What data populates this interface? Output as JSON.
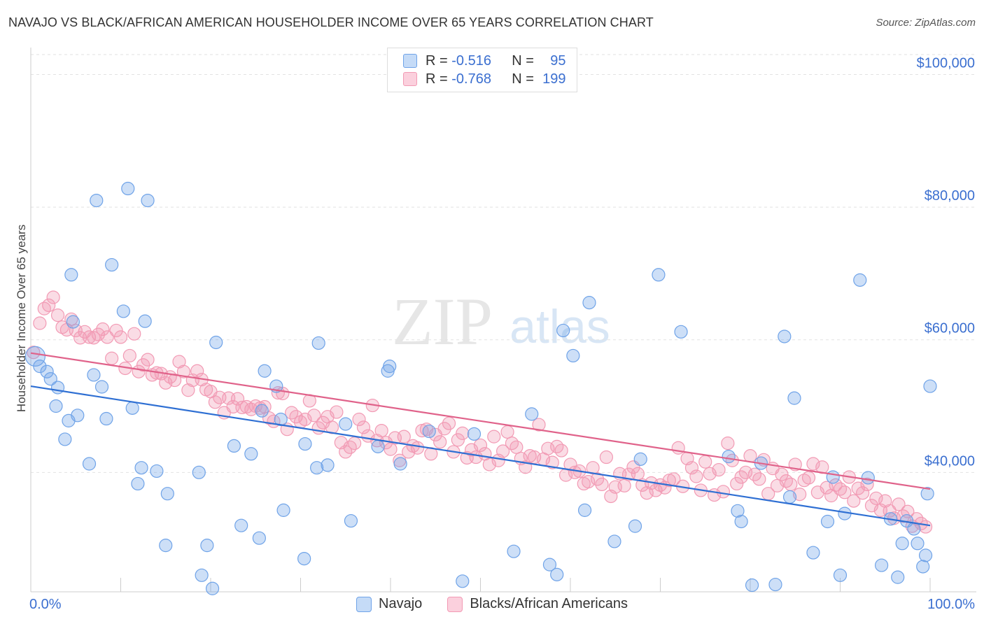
{
  "title": "NAVAJO VS BLACK/AFRICAN AMERICAN HOUSEHOLDER INCOME OVER 65 YEARS CORRELATION CHART",
  "source": "Source: ZipAtlas.com",
  "watermark": {
    "zip": "ZIP",
    "atlas": "atlas"
  },
  "legend": {
    "r_label": "R =",
    "n_label": "N =",
    "rows": [
      {
        "name": "Navajo",
        "r": "-0.516",
        "n": "95",
        "color": "#6fa3e8"
      },
      {
        "name": "Blacks/African Americans",
        "r": "-0.768",
        "n": "199",
        "color": "#f29ab4"
      }
    ]
  },
  "colors": {
    "blue": "#6fa3e8",
    "blue_line": "#2e6fd3",
    "pink": "#f29ab4",
    "pink_line": "#e0628a",
    "axis_text": "#3b6fd0"
  },
  "chart_data": {
    "type": "scatter",
    "title": "NAVAJO VS BLACK/AFRICAN AMERICAN HOUSEHOLDER INCOME OVER 65 YEARS CORRELATION CHART",
    "xlabel": "",
    "ylabel": "Householder Income Over 65 years",
    "xlim": [
      0,
      100
    ],
    "ylim": [
      22000,
      103000
    ],
    "x_tick_labels": [
      "0.0%",
      "100.0%"
    ],
    "y_ticks": [
      40000,
      60000,
      80000,
      100000
    ],
    "y_tick_labels": [
      "$40,000",
      "$60,000",
      "$80,000",
      "$100,000"
    ],
    "grid": true,
    "legend_position": "top-center",
    "series": [
      {
        "name": "Navajo",
        "r": -0.516,
        "n": 95,
        "trend": {
          "x": [
            0,
            100
          ],
          "y": [
            53000,
            32000
          ]
        },
        "points": [
          [
            0.5,
            57500
          ],
          [
            1.0,
            56000
          ],
          [
            1.8,
            55200
          ],
          [
            2.2,
            54100
          ],
          [
            3.0,
            52800
          ],
          [
            2.8,
            50000
          ],
          [
            3.8,
            45000
          ],
          [
            4.2,
            47800
          ],
          [
            5.2,
            48600
          ],
          [
            4.7,
            62700
          ],
          [
            4.5,
            69800
          ],
          [
            6.5,
            41300
          ],
          [
            7.0,
            54700
          ],
          [
            7.9,
            52900
          ],
          [
            7.3,
            81000
          ],
          [
            8.4,
            48100
          ],
          [
            9.0,
            71300
          ],
          [
            10.3,
            64300
          ],
          [
            10.8,
            82800
          ],
          [
            11.3,
            49700
          ],
          [
            11.9,
            38300
          ],
          [
            12.3,
            40700
          ],
          [
            12.7,
            62800
          ],
          [
            13.0,
            81000
          ],
          [
            14.0,
            40200
          ],
          [
            15.2,
            36800
          ],
          [
            15.0,
            29000
          ],
          [
            18.7,
            40000
          ],
          [
            19.0,
            24500
          ],
          [
            19.6,
            29000
          ],
          [
            20.6,
            59600
          ],
          [
            22.6,
            44000
          ],
          [
            23.4,
            32000
          ],
          [
            24.5,
            42800
          ],
          [
            25.7,
            49300
          ],
          [
            25.4,
            30100
          ],
          [
            26.0,
            55300
          ],
          [
            27.3,
            53000
          ],
          [
            27.8,
            48000
          ],
          [
            28.1,
            34300
          ],
          [
            30.5,
            44300
          ],
          [
            31.8,
            40700
          ],
          [
            32.0,
            59500
          ],
          [
            33.0,
            41100
          ],
          [
            35.0,
            47300
          ],
          [
            35.6,
            32700
          ],
          [
            38.6,
            43900
          ],
          [
            39.7,
            55300
          ],
          [
            39.9,
            56000
          ],
          [
            41.1,
            41300
          ],
          [
            44.3,
            46200
          ],
          [
            48.0,
            23600
          ],
          [
            49.3,
            45800
          ],
          [
            53.7,
            28100
          ],
          [
            55.7,
            48800
          ],
          [
            57.7,
            26100
          ],
          [
            58.5,
            24600
          ],
          [
            59.2,
            61400
          ],
          [
            60.3,
            57600
          ],
          [
            61.6,
            34300
          ],
          [
            62.1,
            65600
          ],
          [
            64.9,
            29600
          ],
          [
            67.2,
            31900
          ],
          [
            67.8,
            42000
          ],
          [
            69.8,
            69800
          ],
          [
            72.3,
            61200
          ],
          [
            77.6,
            42400
          ],
          [
            78.6,
            34200
          ],
          [
            80.2,
            23000
          ],
          [
            81.2,
            41400
          ],
          [
            82.8,
            23100
          ],
          [
            83.8,
            60500
          ],
          [
            84.4,
            36300
          ],
          [
            84.9,
            51200
          ],
          [
            87.0,
            27900
          ],
          [
            88.6,
            32600
          ],
          [
            89.2,
            39300
          ],
          [
            90.0,
            24500
          ],
          [
            90.5,
            33800
          ],
          [
            92.2,
            69000
          ],
          [
            93.1,
            39200
          ],
          [
            94.6,
            26000
          ],
          [
            95.6,
            33000
          ],
          [
            96.4,
            24200
          ],
          [
            96.9,
            29300
          ],
          [
            97.4,
            32700
          ],
          [
            98.2,
            31500
          ],
          [
            98.6,
            29300
          ],
          [
            99.2,
            25800
          ],
          [
            99.7,
            36800
          ],
          [
            100.0,
            53000
          ],
          [
            79.0,
            32600
          ],
          [
            99.5,
            27500
          ],
          [
            20.2,
            22500
          ],
          [
            30.4,
            27000
          ]
        ]
      },
      {
        "name": "Blacks/African Americans",
        "r": -0.768,
        "n": 199,
        "trend": {
          "x": [
            0,
            100
          ],
          "y": [
            58000,
            37500
          ]
        },
        "points": [
          [
            0.3,
            58100
          ],
          [
            1.0,
            62500
          ],
          [
            1.5,
            64700
          ],
          [
            2.0,
            65200
          ],
          [
            2.5,
            66400
          ],
          [
            3.0,
            63700
          ],
          [
            3.5,
            61900
          ],
          [
            4.0,
            61500
          ],
          [
            4.5,
            63100
          ],
          [
            5.0,
            61400
          ],
          [
            5.5,
            60300
          ],
          [
            6.0,
            61200
          ],
          [
            6.5,
            60400
          ],
          [
            7.0,
            60300
          ],
          [
            7.5,
            60800
          ],
          [
            8.0,
            61600
          ],
          [
            8.5,
            60400
          ],
          [
            9.0,
            57200
          ],
          [
            9.5,
            61400
          ],
          [
            10.0,
            60400
          ],
          [
            10.5,
            55700
          ],
          [
            11.0,
            57600
          ],
          [
            11.5,
            60900
          ],
          [
            12.0,
            55200
          ],
          [
            12.5,
            56200
          ],
          [
            13.0,
            57000
          ],
          [
            13.5,
            54700
          ],
          [
            14.0,
            55000
          ],
          [
            14.5,
            54900
          ],
          [
            15.0,
            53500
          ],
          [
            15.5,
            54400
          ],
          [
            16.0,
            53900
          ],
          [
            16.5,
            56700
          ],
          [
            17.0,
            55200
          ],
          [
            17.5,
            52400
          ],
          [
            18.0,
            53900
          ],
          [
            18.5,
            55300
          ],
          [
            19.0,
            54000
          ],
          [
            19.5,
            52500
          ],
          [
            20.0,
            52200
          ],
          [
            20.5,
            50600
          ],
          [
            21.0,
            51300
          ],
          [
            21.5,
            49000
          ],
          [
            22.0,
            51200
          ],
          [
            22.5,
            49900
          ],
          [
            23.0,
            51100
          ],
          [
            23.5,
            49800
          ],
          [
            24.0,
            49900
          ],
          [
            24.5,
            49500
          ],
          [
            25.0,
            50000
          ],
          [
            25.5,
            49700
          ],
          [
            26.0,
            49900
          ],
          [
            26.5,
            48200
          ],
          [
            27.0,
            47700
          ],
          [
            27.5,
            52000
          ],
          [
            28.0,
            51900
          ],
          [
            28.5,
            46500
          ],
          [
            29.0,
            49000
          ],
          [
            29.5,
            48400
          ],
          [
            30.0,
            47600
          ],
          [
            30.5,
            48000
          ],
          [
            31.0,
            50800
          ],
          [
            31.5,
            48600
          ],
          [
            32.0,
            46700
          ],
          [
            32.5,
            47500
          ],
          [
            33.0,
            48400
          ],
          [
            33.5,
            46800
          ],
          [
            34.0,
            49100
          ],
          [
            34.5,
            44500
          ],
          [
            35.0,
            43100
          ],
          [
            35.5,
            43800
          ],
          [
            36.0,
            44400
          ],
          [
            36.5,
            48000
          ],
          [
            37.0,
            46800
          ],
          [
            37.5,
            45500
          ],
          [
            38.0,
            50100
          ],
          [
            38.5,
            44800
          ],
          [
            39.0,
            46300
          ],
          [
            39.5,
            44500
          ],
          [
            40.0,
            43500
          ],
          [
            40.5,
            45200
          ],
          [
            41.0,
            41800
          ],
          [
            41.5,
            45400
          ],
          [
            42.0,
            43100
          ],
          [
            42.5,
            44000
          ],
          [
            43.0,
            43700
          ],
          [
            43.5,
            46300
          ],
          [
            44.0,
            46500
          ],
          [
            44.5,
            42800
          ],
          [
            45.0,
            45700
          ],
          [
            45.5,
            44600
          ],
          [
            46.0,
            46600
          ],
          [
            46.5,
            47400
          ],
          [
            47.0,
            43100
          ],
          [
            47.5,
            44900
          ],
          [
            48.0,
            45900
          ],
          [
            48.5,
            42200
          ],
          [
            49.0,
            43400
          ],
          [
            49.5,
            42300
          ],
          [
            50.0,
            44100
          ],
          [
            50.5,
            42800
          ],
          [
            51.0,
            41200
          ],
          [
            51.5,
            45400
          ],
          [
            52.0,
            41800
          ],
          [
            52.5,
            43200
          ],
          [
            53.0,
            46100
          ],
          [
            53.5,
            44400
          ],
          [
            54.0,
            43800
          ],
          [
            54.5,
            42100
          ],
          [
            55.0,
            40800
          ],
          [
            55.5,
            42500
          ],
          [
            56.0,
            42300
          ],
          [
            56.5,
            47200
          ],
          [
            57.0,
            42000
          ],
          [
            57.5,
            43600
          ],
          [
            58.0,
            41500
          ],
          [
            58.5,
            43900
          ],
          [
            59.0,
            43300
          ],
          [
            59.5,
            39600
          ],
          [
            60.0,
            41200
          ],
          [
            60.5,
            40000
          ],
          [
            61.0,
            40200
          ],
          [
            61.5,
            38300
          ],
          [
            62.0,
            38600
          ],
          [
            62.5,
            40700
          ],
          [
            63.0,
            39000
          ],
          [
            63.5,
            38200
          ],
          [
            64.0,
            42300
          ],
          [
            64.5,
            36400
          ],
          [
            65.0,
            37800
          ],
          [
            65.5,
            39800
          ],
          [
            66.0,
            38000
          ],
          [
            66.5,
            39700
          ],
          [
            67.0,
            40800
          ],
          [
            67.5,
            39800
          ],
          [
            68.0,
            38100
          ],
          [
            68.5,
            36900
          ],
          [
            69.0,
            38400
          ],
          [
            69.5,
            37300
          ],
          [
            70.0,
            38100
          ],
          [
            70.5,
            37700
          ],
          [
            71.0,
            38800
          ],
          [
            71.5,
            39000
          ],
          [
            72.0,
            43700
          ],
          [
            72.5,
            37900
          ],
          [
            73.0,
            42100
          ],
          [
            73.5,
            40700
          ],
          [
            74.0,
            39400
          ],
          [
            74.5,
            37300
          ],
          [
            75.0,
            41600
          ],
          [
            75.5,
            39800
          ],
          [
            76.0,
            36600
          ],
          [
            76.5,
            40400
          ],
          [
            77.0,
            37100
          ],
          [
            77.5,
            44400
          ],
          [
            78.0,
            41800
          ],
          [
            78.5,
            38300
          ],
          [
            79.0,
            39300
          ],
          [
            79.5,
            40000
          ],
          [
            80.0,
            42500
          ],
          [
            80.5,
            39700
          ],
          [
            81.0,
            39000
          ],
          [
            81.5,
            41900
          ],
          [
            82.0,
            36800
          ],
          [
            82.5,
            40600
          ],
          [
            83.0,
            38000
          ],
          [
            83.5,
            39700
          ],
          [
            84.0,
            38700
          ],
          [
            84.5,
            38200
          ],
          [
            85.0,
            41200
          ],
          [
            85.5,
            36700
          ],
          [
            86.0,
            38800
          ],
          [
            86.5,
            39200
          ],
          [
            87.0,
            41300
          ],
          [
            87.5,
            37000
          ],
          [
            88.0,
            40800
          ],
          [
            88.5,
            37700
          ],
          [
            89.0,
            36500
          ],
          [
            89.5,
            38100
          ],
          [
            90.0,
            37500
          ],
          [
            90.5,
            37000
          ],
          [
            91.0,
            39300
          ],
          [
            91.5,
            35700
          ],
          [
            92.0,
            37600
          ],
          [
            92.5,
            36900
          ],
          [
            93.0,
            38200
          ],
          [
            93.5,
            35000
          ],
          [
            94.0,
            36100
          ],
          [
            94.5,
            34300
          ],
          [
            95.0,
            35700
          ],
          [
            95.5,
            34200
          ],
          [
            96.0,
            33100
          ],
          [
            96.5,
            35200
          ],
          [
            97.0,
            33400
          ],
          [
            97.5,
            34100
          ],
          [
            98.0,
            31900
          ],
          [
            98.5,
            33000
          ],
          [
            99.0,
            32300
          ],
          [
            99.5,
            31800
          ]
        ]
      }
    ]
  }
}
